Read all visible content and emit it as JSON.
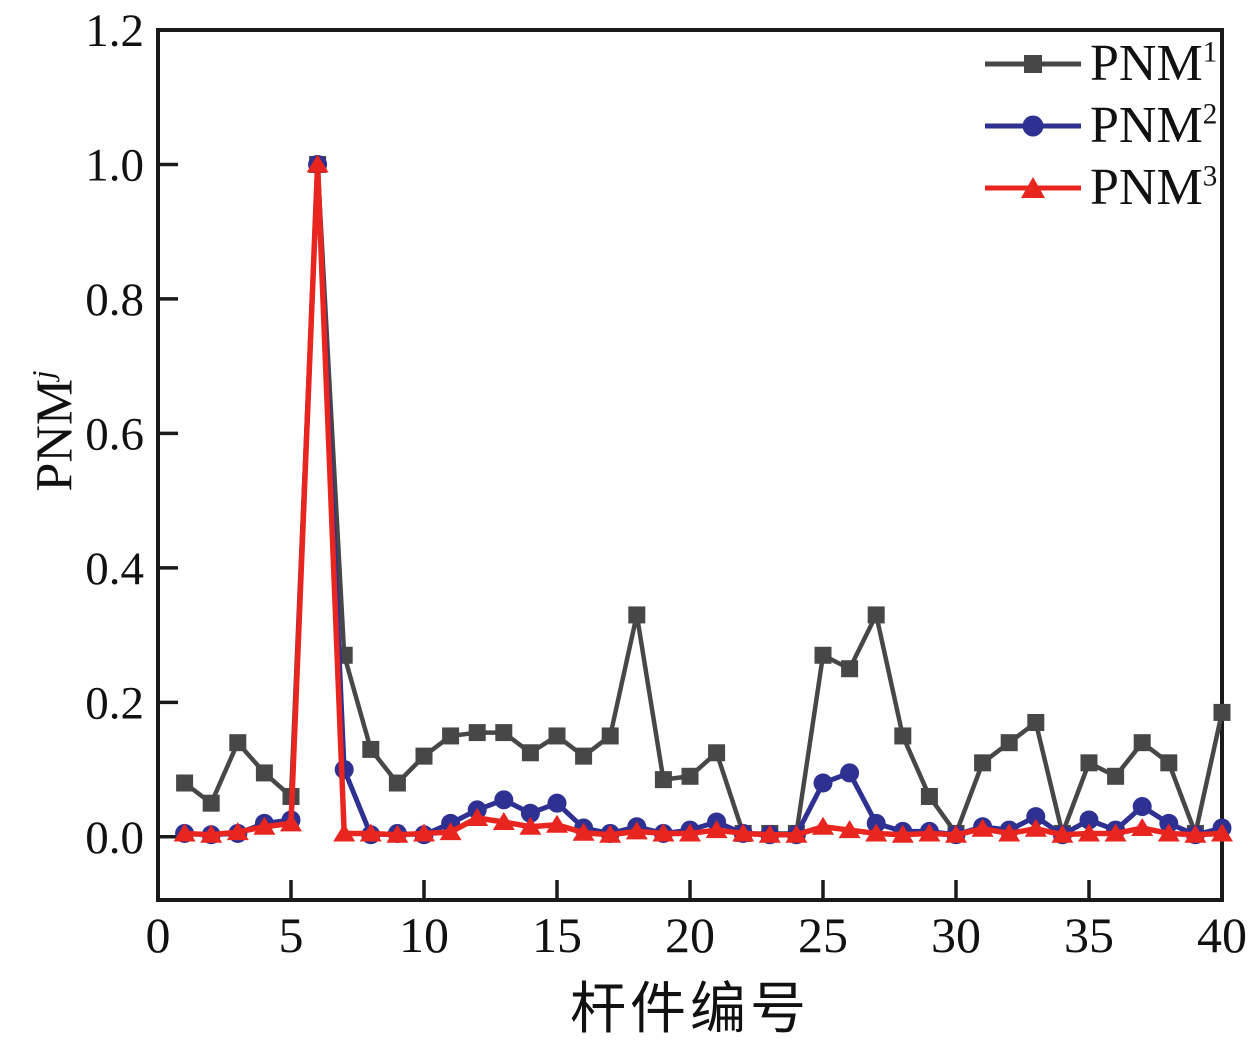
{
  "figure": {
    "background": "#ffffff",
    "axis_color": "#1a1a1a"
  },
  "y_axis_title": {
    "base": "PNM",
    "sup": "j"
  },
  "chart_data": {
    "type": "line",
    "title": "",
    "xlabel": "杆件编号",
    "ylabel": "PNM",
    "ylabel_sup": "j",
    "xlim": [
      0,
      40
    ],
    "ylim": [
      -0.094,
      1.2
    ],
    "x_ticks": [
      0,
      5,
      10,
      15,
      20,
      25,
      30,
      35,
      40
    ],
    "y_ticks": [
      "0.0",
      "0.2",
      "0.4",
      "0.6",
      "0.8",
      "1.0",
      "1.2"
    ],
    "grid": false,
    "legend_position": "top-right",
    "x": [
      1,
      2,
      3,
      4,
      5,
      6,
      7,
      8,
      9,
      10,
      11,
      12,
      13,
      14,
      15,
      16,
      17,
      18,
      19,
      20,
      21,
      22,
      23,
      24,
      25,
      26,
      27,
      28,
      29,
      30,
      31,
      32,
      33,
      34,
      35,
      36,
      37,
      38,
      39,
      40
    ],
    "series": [
      {
        "name": "PNM",
        "sup": "1",
        "marker": "square",
        "color": "#474747",
        "line_width": 4.5,
        "values": [
          0.08,
          0.05,
          0.14,
          0.095,
          0.06,
          1.0,
          0.27,
          0.13,
          0.08,
          0.12,
          0.15,
          0.155,
          0.155,
          0.125,
          0.15,
          0.12,
          0.15,
          0.33,
          0.085,
          0.09,
          0.125,
          0.005,
          0.005,
          0.005,
          0.27,
          0.25,
          0.33,
          0.15,
          0.06,
          0.005,
          0.11,
          0.14,
          0.17,
          0.005,
          0.11,
          0.09,
          0.14,
          0.11,
          0.005,
          0.185
        ]
      },
      {
        "name": "PNM",
        "sup": "2",
        "marker": "circle",
        "color": "#2e3192",
        "line_width": 5,
        "values": [
          0.005,
          0.003,
          0.005,
          0.02,
          0.025,
          1.0,
          0.1,
          0.003,
          0.005,
          0.003,
          0.02,
          0.04,
          0.055,
          0.035,
          0.05,
          0.013,
          0.005,
          0.015,
          0.005,
          0.01,
          0.022,
          0.005,
          0.003,
          0.003,
          0.08,
          0.095,
          0.02,
          0.008,
          0.008,
          0.003,
          0.015,
          0.01,
          0.03,
          0.003,
          0.025,
          0.01,
          0.045,
          0.02,
          0.003,
          0.013
        ]
      },
      {
        "name": "PNM",
        "sup": "3",
        "marker": "triangle",
        "color": "#e8251f",
        "line_width": 5.5,
        "values": [
          0.005,
          0.003,
          0.007,
          0.015,
          0.02,
          1.0,
          0.005,
          0.005,
          0.003,
          0.005,
          0.007,
          0.028,
          0.022,
          0.015,
          0.018,
          0.006,
          0.003,
          0.008,
          0.005,
          0.005,
          0.01,
          0.005,
          0.003,
          0.003,
          0.015,
          0.01,
          0.005,
          0.003,
          0.005,
          0.003,
          0.012,
          0.005,
          0.012,
          0.003,
          0.005,
          0.005,
          0.013,
          0.005,
          0.003,
          0.005
        ]
      }
    ]
  }
}
